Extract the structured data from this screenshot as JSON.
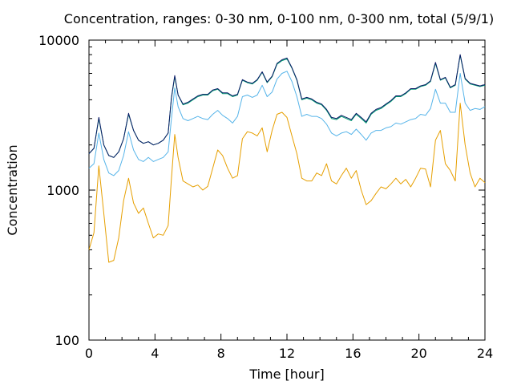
{
  "chart_data": {
    "type": "line",
    "title": "Concentration, ranges: 0-30 nm, 0-100 nm, 0-300 nm, total (5/9/1)",
    "xlabel": "Time [hour]",
    "ylabel": "Concentration",
    "xlim": [
      0,
      24
    ],
    "ylim": [
      100,
      10000
    ],
    "yscale": "log",
    "grid": false,
    "legend": "none",
    "xticks": [
      "0",
      "4",
      "8",
      "12",
      "16",
      "20",
      "24"
    ],
    "xtick_values": [
      0,
      4,
      8,
      12,
      16,
      20,
      24
    ],
    "yticks": [
      "100",
      "1000",
      "10000"
    ],
    "ytick_values": [
      100,
      1000,
      10000
    ],
    "x": [
      0,
      0.3,
      0.6,
      0.9,
      1.2,
      1.5,
      1.8,
      2.1,
      2.4,
      2.7,
      3.0,
      3.3,
      3.6,
      3.9,
      4.2,
      4.5,
      4.8,
      5.0,
      5.2,
      5.4,
      5.7,
      6.0,
      6.3,
      6.6,
      6.9,
      7.2,
      7.5,
      7.8,
      8.1,
      8.4,
      8.7,
      9.0,
      9.3,
      9.6,
      9.9,
      10.2,
      10.5,
      10.8,
      11.1,
      11.4,
      11.7,
      12.0,
      12.3,
      12.6,
      12.9,
      13.2,
      13.5,
      13.8,
      14.1,
      14.4,
      14.7,
      15.0,
      15.3,
      15.6,
      15.9,
      16.2,
      16.5,
      16.8,
      17.1,
      17.4,
      17.7,
      18.0,
      18.3,
      18.6,
      18.9,
      19.2,
      19.5,
      19.8,
      20.1,
      20.4,
      20.7,
      21.0,
      21.3,
      21.6,
      21.9,
      22.2,
      22.5,
      22.8,
      23.1,
      23.4,
      23.7,
      24.0
    ],
    "series": [
      {
        "color": "#e69f00",
        "values": [
          400,
          520,
          1450,
          700,
          330,
          340,
          480,
          850,
          1200,
          820,
          700,
          760,
          600,
          480,
          510,
          500,
          580,
          1200,
          2350,
          1650,
          1150,
          1100,
          1050,
          1080,
          1000,
          1060,
          1400,
          1850,
          1700,
          1400,
          1200,
          1250,
          2200,
          2450,
          2400,
          2300,
          2600,
          1800,
          2500,
          3200,
          3300,
          3050,
          2300,
          1750,
          1200,
          1150,
          1150,
          1300,
          1250,
          1500,
          1150,
          1100,
          1250,
          1400,
          1200,
          1350,
          1000,
          800,
          850,
          950,
          1050,
          1020,
          1100,
          1200,
          1100,
          1180,
          1050,
          1200,
          1400,
          1380,
          1050,
          2150,
          2500,
          1500,
          1350,
          1150,
          3800,
          2000,
          1300,
          1050,
          1200,
          1120
        ]
      },
      {
        "color": "#56b4e9",
        "values": [
          1400,
          1500,
          2400,
          1600,
          1300,
          1250,
          1350,
          1700,
          2450,
          1850,
          1600,
          1550,
          1650,
          1550,
          1600,
          1650,
          1800,
          3000,
          4800,
          3600,
          3000,
          2900,
          3000,
          3100,
          3000,
          2950,
          3200,
          3400,
          3150,
          3000,
          2800,
          3100,
          4200,
          4300,
          4150,
          4300,
          5000,
          4200,
          4500,
          5500,
          6000,
          6200,
          5300,
          4200,
          3100,
          3200,
          3100,
          3100,
          3000,
          2750,
          2400,
          2300,
          2400,
          2450,
          2350,
          2550,
          2350,
          2150,
          2400,
          2500,
          2500,
          2600,
          2650,
          2800,
          2750,
          2850,
          2950,
          3000,
          3200,
          3150,
          3500,
          4700,
          3800,
          3800,
          3300,
          3300,
          6000,
          3800,
          3400,
          3500,
          3450,
          3600
        ]
      },
      {
        "color": "#009e73",
        "values": [
          1750,
          1900,
          3000,
          2000,
          1700,
          1650,
          1800,
          2200,
          3200,
          2500,
          2150,
          2050,
          2100,
          2000,
          2050,
          2150,
          2400,
          4100,
          5700,
          4300,
          3700,
          3800,
          4000,
          4200,
          4300,
          4300,
          4600,
          4700,
          4400,
          4400,
          4200,
          4300,
          5400,
          5200,
          5100,
          5400,
          6100,
          5200,
          5700,
          6900,
          7300,
          7500,
          6500,
          5400,
          4000,
          4100,
          4000,
          3800,
          3700,
          3400,
          3000,
          2950,
          3100,
          3000,
          2900,
          3200,
          3000,
          2800,
          3200,
          3400,
          3500,
          3700,
          3900,
          4200,
          4200,
          4400,
          4700,
          4700,
          4900,
          5000,
          5300,
          7000,
          5400,
          5600,
          4800,
          5000,
          7900,
          5500,
          5100,
          5000,
          4900,
          5000
        ]
      },
      {
        "color": "#0a1a66",
        "values": [
          1750,
          1900,
          3050,
          2000,
          1700,
          1650,
          1800,
          2200,
          3250,
          2500,
          2150,
          2050,
          2100,
          2000,
          2050,
          2150,
          2400,
          4150,
          5800,
          4300,
          3750,
          3850,
          4050,
          4250,
          4350,
          4350,
          4650,
          4750,
          4450,
          4450,
          4250,
          4350,
          5450,
          5250,
          5150,
          5450,
          6150,
          5250,
          5750,
          7000,
          7400,
          7600,
          6550,
          5450,
          4050,
          4150,
          4050,
          3850,
          3750,
          3450,
          3050,
          3000,
          3150,
          3050,
          2950,
          3250,
          3050,
          2850,
          3250,
          3450,
          3550,
          3750,
          3950,
          4250,
          4250,
          4450,
          4750,
          4750,
          4950,
          5050,
          5350,
          7100,
          5450,
          5650,
          4850,
          5050,
          8000,
          5550,
          5150,
          5050,
          4950,
          5050
        ]
      }
    ]
  }
}
